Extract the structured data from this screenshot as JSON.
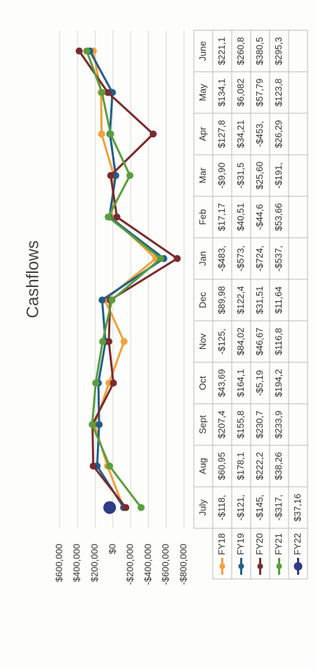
{
  "chart_data": {
    "type": "line",
    "title": "Cashflows",
    "categories": [
      "July",
      "Aug",
      "Sept",
      "Oct",
      "Nov",
      "Dec",
      "Jan",
      "Feb",
      "Mar",
      "Apr",
      "May",
      "June"
    ],
    "ylim": [
      -800000,
      600000
    ],
    "yticks": [
      {
        "value": -800000,
        "label": "-$800,000"
      },
      {
        "value": -600000,
        "label": "-$600,000"
      },
      {
        "value": -400000,
        "label": "-$400,000"
      },
      {
        "value": -200000,
        "label": "-$200,000"
      },
      {
        "value": 0,
        "label": "$0"
      },
      {
        "value": 200000,
        "label": "$200,000"
      },
      {
        "value": 400000,
        "label": "$400,000"
      },
      {
        "value": 600000,
        "label": "$600,000"
      }
    ],
    "grid": true,
    "series": [
      {
        "name": "FY18",
        "color": "#f3a03a",
        "values": [
          -118000,
          60950,
          207400,
          43690,
          -125000,
          89980,
          -483000,
          17170,
          -9900,
          127800,
          134100,
          221100
        ],
        "value_labels": [
          "-$118,",
          "$60,95",
          "$207,4",
          "$43,69",
          "-$125,",
          "$89,98",
          "-$483,",
          "$17,17",
          "-$9,90",
          "$127,8",
          "$134,1",
          "$221,1"
        ]
      },
      {
        "name": "FY19",
        "color": "#1f5f8b",
        "values": [
          -121000,
          178100,
          155800,
          164100,
          84020,
          122400,
          -573000,
          40510,
          -31500,
          34210,
          6082,
          260800
        ],
        "value_labels": [
          "-$121,",
          "$178,1",
          "$155,8",
          "$164,1",
          "$84,02",
          "$122,4",
          "-$573,",
          "$40,51",
          "-$31,5",
          "$34,21",
          "$6,082",
          "$260,8"
        ]
      },
      {
        "name": "FY20",
        "color": "#7a2b2e",
        "values": [
          -145000,
          222200,
          230700,
          -5190,
          46670,
          31510,
          -724000,
          -44600,
          25600,
          -453000,
          57790,
          380500
        ],
        "value_labels": [
          "-$145,",
          "$222,2",
          "$230,7",
          "-$5,19",
          "$46,67",
          "$31,51",
          "-$724,",
          "-$44,6",
          "$25,60",
          "-$453,",
          "$57,79",
          "$380,5"
        ]
      },
      {
        "name": "FY21",
        "color": "#5a9e3c",
        "values": [
          -317000,
          38260,
          233900,
          194200,
          116800,
          11640,
          -537000,
          53660,
          -191000,
          26290,
          123800,
          295300
        ],
        "value_labels": [
          "-$317,",
          "$38,26",
          "$233,9",
          "$194,2",
          "$116,8",
          "$11,64",
          "-$537,",
          "$53,66",
          "-$191,",
          "$26,29",
          "$123,8",
          "$295,3"
        ]
      },
      {
        "name": "FY22",
        "color": "#2e3b86",
        "values": [
          37160,
          null,
          null,
          null,
          null,
          null,
          null,
          null,
          null,
          null,
          null,
          null
        ],
        "value_labels": [
          "$37,16",
          null,
          null,
          null,
          null,
          null,
          null,
          null,
          null,
          null,
          null,
          null
        ]
      }
    ]
  }
}
